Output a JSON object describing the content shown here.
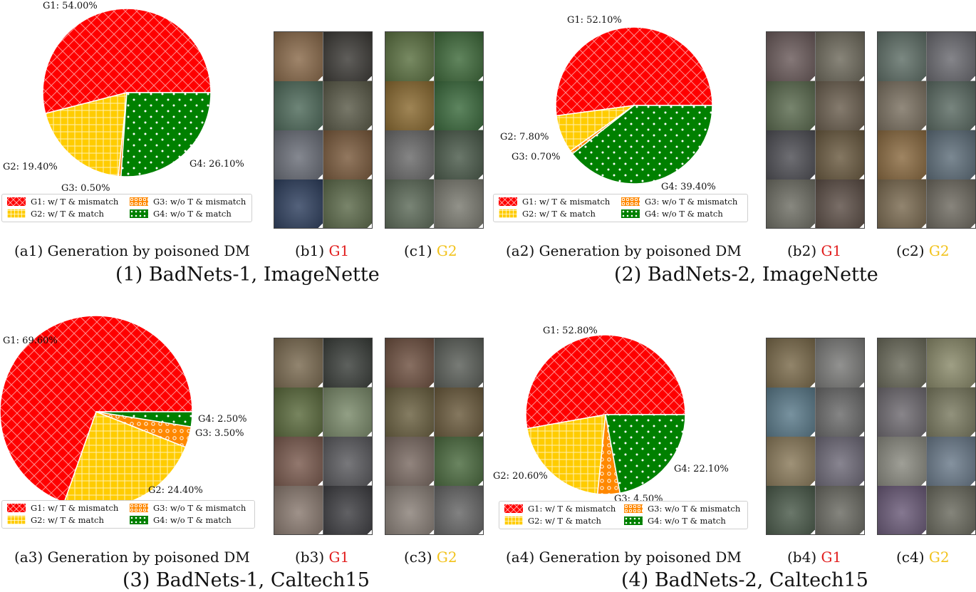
{
  "legend_labels": {
    "g1": "G1: w/ T & mismatch",
    "g2": "G2: w/ T & match",
    "g3": "G3: w/o T & mismatch",
    "g4": "G4: w/o T & match"
  },
  "colors": {
    "g1": "#ff0000",
    "g2": "#ffcc00",
    "g3": "#ff8800",
    "g4": "#008000"
  },
  "chart_data": [
    {
      "type": "pie",
      "title": "(1) BadNets-1, ImageNette",
      "slices": [
        {
          "name": "G1",
          "value": 54.0,
          "label": "G1: 54.00%"
        },
        {
          "name": "G2",
          "value": 19.4,
          "label": "G2: 19.40%"
        },
        {
          "name": "G3",
          "value": 0.5,
          "label": "G3: 0.50%"
        },
        {
          "name": "G4",
          "value": 26.1,
          "label": "G4: 26.10%"
        }
      ],
      "caption_a": "(a1) Generation by poisoned DM",
      "caption_b_prefix": "(b1)",
      "caption_b_group": "G1",
      "caption_c_prefix": "(c1)",
      "caption_c_group": "G2"
    },
    {
      "type": "pie",
      "title": "(2) BadNets-2, ImageNette",
      "slices": [
        {
          "name": "G1",
          "value": 52.1,
          "label": "G1: 52.10%"
        },
        {
          "name": "G2",
          "value": 7.8,
          "label": "G2: 7.80%"
        },
        {
          "name": "G3",
          "value": 0.7,
          "label": "G3: 0.70%"
        },
        {
          "name": "G4",
          "value": 39.4,
          "label": "G4: 39.40%"
        }
      ],
      "caption_a": "(a2) Generation by poisoned DM",
      "caption_b_prefix": "(b2)",
      "caption_b_group": "G1",
      "caption_c_prefix": "(c2)",
      "caption_c_group": "G2"
    },
    {
      "type": "pie",
      "title": "(3) BadNets-1, Caltech15",
      "slices": [
        {
          "name": "G1",
          "value": 69.6,
          "label": "G1: 69.60%"
        },
        {
          "name": "G2",
          "value": 24.4,
          "label": "G2: 24.40%"
        },
        {
          "name": "G3",
          "value": 3.5,
          "label": "G3: 3.50%"
        },
        {
          "name": "G4",
          "value": 2.5,
          "label": "G4: 2.50%"
        }
      ],
      "caption_a": "(a3) Generation by poisoned DM",
      "caption_b_prefix": "(b3)",
      "caption_b_group": "G1",
      "caption_c_prefix": "(c3)",
      "caption_c_group": "G2"
    },
    {
      "type": "pie",
      "title": "(4) BadNets-2, Caltech15",
      "slices": [
        {
          "name": "G1",
          "value": 52.8,
          "label": "G1: 52.80%"
        },
        {
          "name": "G2",
          "value": 20.6,
          "label": "G2: 20.60%"
        },
        {
          "name": "G3",
          "value": 4.5,
          "label": "G3: 4.50%"
        },
        {
          "name": "G4",
          "value": 22.1,
          "label": "G4: 22.10%"
        }
      ],
      "caption_a": "(a4) Generation by poisoned DM",
      "caption_b_prefix": "(b4)",
      "caption_b_group": "G1",
      "caption_c_prefix": "(c4)",
      "caption_c_group": "G2"
    }
  ]
}
